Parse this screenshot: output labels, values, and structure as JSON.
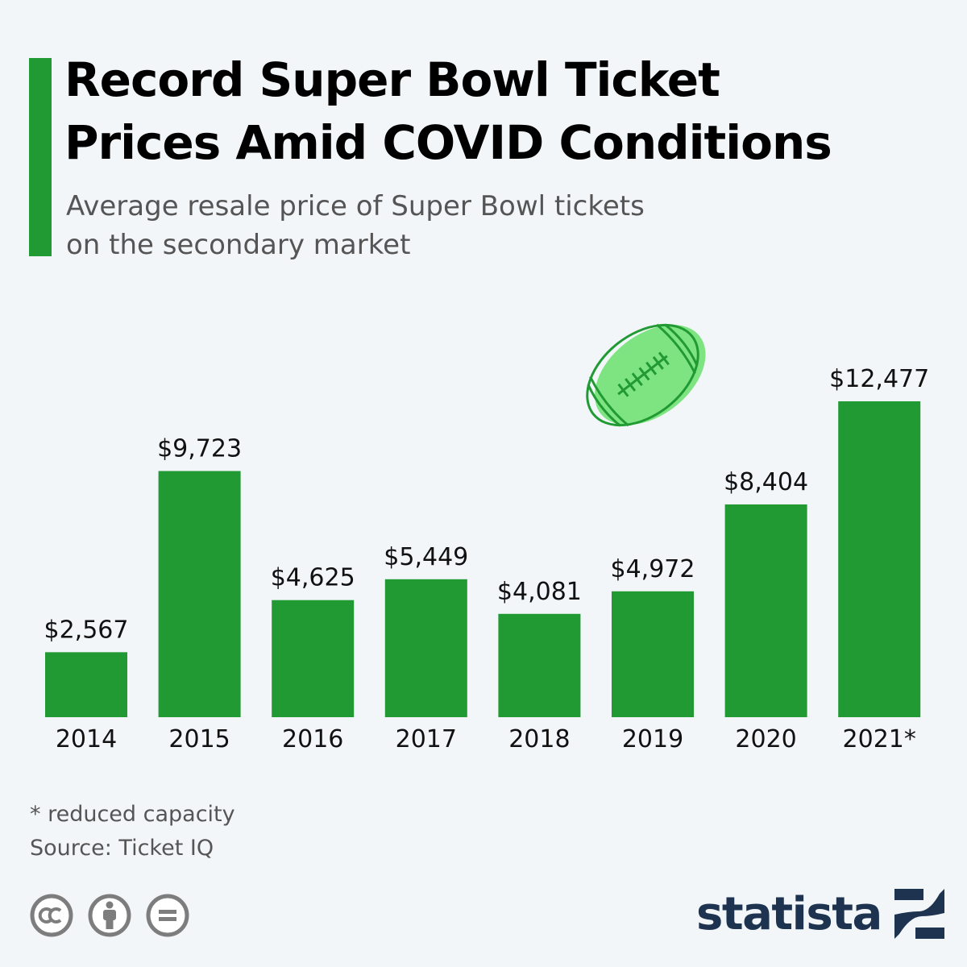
{
  "header": {
    "title_line1": "Record Super Bowl Ticket",
    "title_line2": "Prices Amid COVID Conditions",
    "subtitle_line1": "Average resale price of Super Bowl tickets",
    "subtitle_line2": "on the secondary market",
    "accent_color": "#229a34"
  },
  "chart_data": {
    "type": "bar",
    "title": "Record Super Bowl Ticket Prices Amid COVID Conditions",
    "subtitle": "Average resale price of Super Bowl tickets on the secondary market",
    "categories": [
      "2014",
      "2015",
      "2016",
      "2017",
      "2018",
      "2019",
      "2020",
      "2021*"
    ],
    "values": [
      2567,
      9723,
      4625,
      5449,
      4081,
      4972,
      8404,
      12477
    ],
    "value_labels": [
      "$2,567",
      "$9,723",
      "$4,625",
      "$5,449",
      "$4,081",
      "$4,972",
      "$8,404",
      "$12,477"
    ],
    "xlabel": "",
    "ylabel": "",
    "ylim": [
      0,
      12477
    ],
    "grid": false,
    "bar_color": "#229a34"
  },
  "decoration": {
    "icon": "football-icon"
  },
  "footer": {
    "footnote": "* reduced capacity",
    "source": "Source: Ticket IQ",
    "license_icons": [
      "creative-commons-icon",
      "attribution-icon",
      "no-derivatives-icon"
    ],
    "brand": "statista",
    "brand_color": "#1e3350"
  }
}
